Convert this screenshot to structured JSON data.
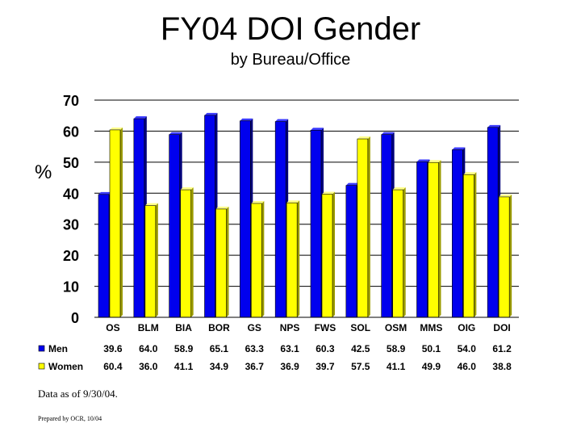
{
  "header": {
    "title": "FY04 DOI Gender",
    "subtitle": "by Bureau/Office"
  },
  "footer": {
    "data_note": "Data as of 9/30/04.",
    "prepared_by": "Prepared by OCR, 10/04"
  },
  "chart_data": {
    "type": "bar",
    "title": "FY04 DOI Gender",
    "subtitle": "by Bureau/Office",
    "ylabel": "%",
    "ylim": [
      0,
      70
    ],
    "yticks": [
      0,
      10,
      20,
      30,
      40,
      50,
      60,
      70
    ],
    "grid": true,
    "legend_placement": "data-table",
    "categories": [
      "OS",
      "BLM",
      "BIA",
      "BOR",
      "GS",
      "NPS",
      "FWS",
      "SOL",
      "OSM",
      "MMS",
      "OIG",
      "DOI"
    ],
    "series": [
      {
        "name": "Men",
        "color": "#0000ee",
        "values": [
          39.6,
          64.0,
          58.9,
          65.1,
          63.3,
          63.1,
          60.3,
          42.5,
          58.9,
          50.1,
          54.0,
          61.2
        ],
        "labels": [
          "39.6",
          "64.0",
          "58.9",
          "65.1",
          "63.3",
          "63.1",
          "60.3",
          "42.5",
          "58.9",
          "50.1",
          "54.0",
          "61.2"
        ]
      },
      {
        "name": "Women",
        "color": "#ffff00",
        "values": [
          60.4,
          36.0,
          41.1,
          34.9,
          36.7,
          36.9,
          39.7,
          57.5,
          41.1,
          49.9,
          46.0,
          38.8
        ],
        "labels": [
          "60.4",
          "36.0",
          "41.1",
          "34.9",
          "36.7",
          "36.9",
          "39.7",
          "57.5",
          "41.1",
          "49.9",
          "46.0",
          "38.8"
        ]
      }
    ]
  }
}
